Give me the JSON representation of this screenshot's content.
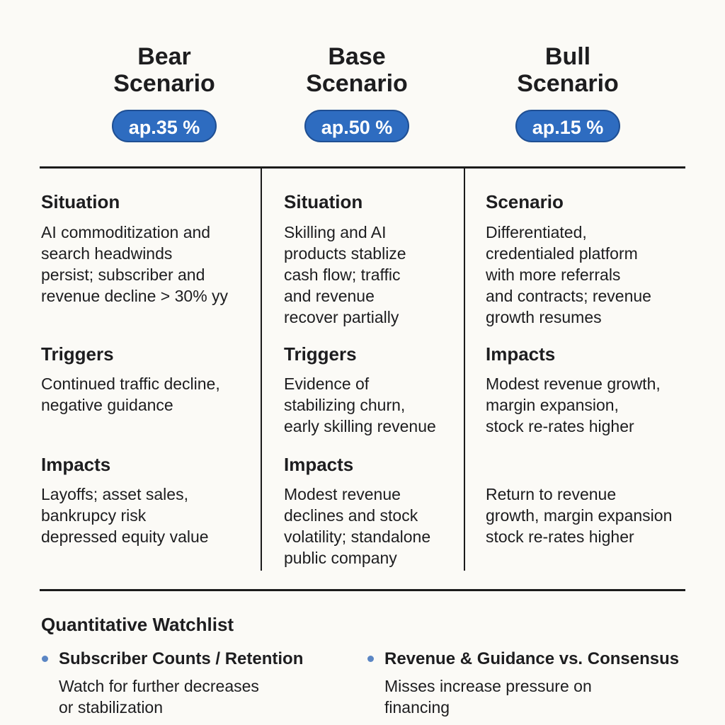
{
  "columns": [
    {
      "title_lines": [
        "Bear",
        "Scenario"
      ],
      "probability": "ap.35 %",
      "sections": [
        {
          "heading": "Situation",
          "lines": [
            "AI commoditization and",
            "search headwinds",
            "persist; subscriber and",
            "revenue decline > 30% yy"
          ]
        },
        {
          "heading": "Triggers",
          "lines": [
            "Continued traffic decline,",
            "negative guidance"
          ]
        },
        {
          "heading": "Impacts",
          "lines": [
            "Layoffs; asset sales,",
            "bankrupcy risk",
            "depressed equity value"
          ]
        }
      ]
    },
    {
      "title_lines": [
        "Base",
        "Scenario"
      ],
      "probability": "ap.50 %",
      "sections": [
        {
          "heading": "Situation",
          "lines": [
            "Skilling and AI",
            "products stablize",
            "cash flow; traffic",
            "and revenue",
            "recover partially"
          ]
        },
        {
          "heading": "Triggers",
          "lines": [
            "Evidence of",
            "stabilizing churn,",
            "early skilling revenue"
          ]
        },
        {
          "heading": "Impacts",
          "lines": [
            "Modest revenue",
            "declines and stock",
            "volatility; standalone",
            "public company"
          ]
        }
      ]
    },
    {
      "title_lines": [
        "Bull",
        "Scenario"
      ],
      "probability": "ap.15 %",
      "sections": [
        {
          "heading": "Scenario",
          "lines": [
            "Differentiated,",
            "credentialed  platform",
            "with more referrals",
            "and contracts; revenue",
            "growth resumes"
          ]
        },
        {
          "heading": "Impacts",
          "lines": [
            "Modest revenue growth,",
            "margin expansion,",
            "stock re-rates higher"
          ]
        },
        {
          "lines": [
            "Return to revenue",
            "growth,  margin expansion",
            "stock re-rates higher"
          ]
        }
      ]
    }
  ],
  "watchlist": {
    "title": "Quantitative Watchlist",
    "items": [
      {
        "title": "Subscriber Counts / Retention",
        "lines": [
          "Watch for further decreases",
          "or stabilization"
        ]
      },
      {
        "title": "Revenue & Guidance vs. Consensus",
        "lines": [
          "Misses increase pressure on",
          "financing"
        ]
      }
    ]
  }
}
